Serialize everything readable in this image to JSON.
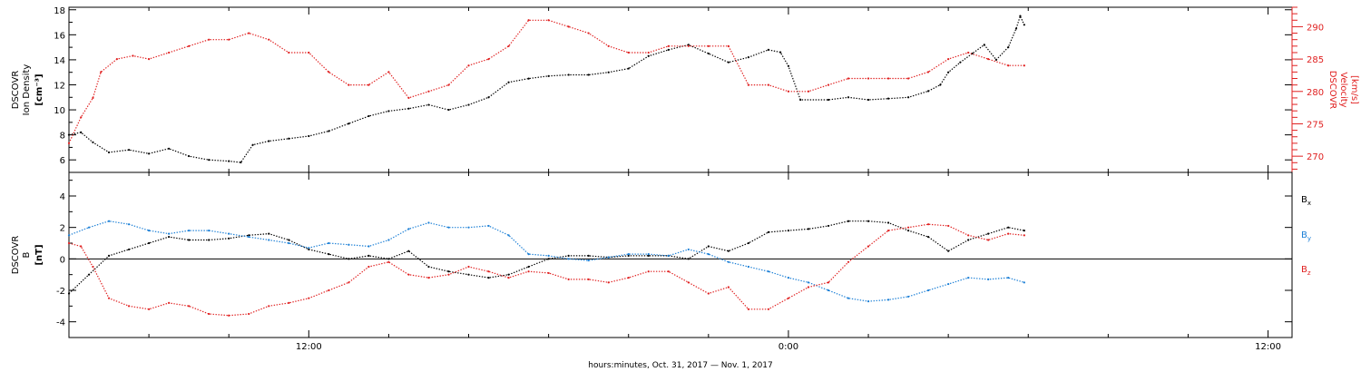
{
  "chart_data": [
    {
      "type": "scatter",
      "panel": "top",
      "left_axis": {
        "label_lines": [
          "DSCOVR",
          "Ion Density"
        ],
        "units": "[cm⁻³]",
        "ylim": [
          5,
          18.2
        ],
        "ticks": [
          6,
          8,
          10,
          12,
          14,
          16,
          18
        ],
        "color": "#000000"
      },
      "right_axis": {
        "label_lines": [
          "DSCOVR",
          "Velocity",
          "[km/s]"
        ],
        "ylim": [
          267.5,
          293
        ],
        "ticks": [
          270,
          275,
          280,
          285,
          290
        ],
        "color": "#e02020"
      },
      "series": [
        {
          "name": "",
          "axis": "left",
          "color": "#000000",
          "points": [
            [
              6.0,
              8.0
            ],
            [
              6.3,
              8.2
            ],
            [
              6.6,
              7.4
            ],
            [
              7.0,
              6.6
            ],
            [
              7.5,
              6.8
            ],
            [
              8.0,
              6.5
            ],
            [
              8.5,
              6.9
            ],
            [
              9.0,
              6.3
            ],
            [
              9.5,
              6.0
            ],
            [
              10.0,
              5.9
            ],
            [
              10.3,
              5.8
            ],
            [
              10.6,
              7.2
            ],
            [
              11.0,
              7.5
            ],
            [
              11.5,
              7.7
            ],
            [
              12.0,
              7.9
            ],
            [
              12.5,
              8.3
            ],
            [
              13.0,
              8.9
            ],
            [
              13.5,
              9.5
            ],
            [
              14.0,
              9.9
            ],
            [
              14.5,
              10.1
            ],
            [
              15.0,
              10.4
            ],
            [
              15.5,
              10.0
            ],
            [
              16.0,
              10.4
            ],
            [
              16.5,
              11.0
            ],
            [
              17.0,
              12.2
            ],
            [
              17.5,
              12.5
            ],
            [
              18.0,
              12.7
            ],
            [
              18.5,
              12.8
            ],
            [
              19.0,
              12.8
            ],
            [
              19.5,
              13.0
            ],
            [
              20.0,
              13.3
            ],
            [
              20.5,
              14.3
            ],
            [
              21.0,
              14.8
            ],
            [
              21.5,
              15.2
            ],
            [
              22.0,
              14.5
            ],
            [
              22.5,
              13.8
            ],
            [
              23.0,
              14.2
            ],
            [
              23.5,
              14.8
            ],
            [
              23.8,
              14.6
            ],
            [
              24.0,
              13.5
            ],
            [
              24.3,
              10.8
            ],
            [
              25.0,
              10.8
            ],
            [
              25.5,
              11.0
            ],
            [
              26.0,
              10.8
            ],
            [
              26.5,
              10.9
            ],
            [
              27.0,
              11.0
            ],
            [
              27.5,
              11.5
            ],
            [
              27.8,
              12.0
            ],
            [
              28.0,
              13.0
            ],
            [
              28.3,
              13.8
            ],
            [
              28.6,
              14.5
            ],
            [
              28.9,
              15.2
            ],
            [
              29.2,
              14.0
            ],
            [
              29.5,
              15.0
            ],
            [
              29.7,
              16.5
            ],
            [
              29.8,
              17.5
            ],
            [
              29.9,
              16.8
            ]
          ]
        },
        {
          "name": "",
          "axis": "right",
          "color": "#e02020",
          "points": [
            [
              6.0,
              272
            ],
            [
              6.3,
              276
            ],
            [
              6.6,
              279
            ],
            [
              6.8,
              283
            ],
            [
              7.2,
              285
            ],
            [
              7.6,
              285.5
            ],
            [
              8.0,
              285
            ],
            [
              8.5,
              286
            ],
            [
              9.0,
              287
            ],
            [
              9.5,
              288
            ],
            [
              10.0,
              288
            ],
            [
              10.5,
              289
            ],
            [
              11.0,
              288
            ],
            [
              11.5,
              286
            ],
            [
              12.0,
              286
            ],
            [
              12.5,
              283
            ],
            [
              13.0,
              281
            ],
            [
              13.5,
              281
            ],
            [
              14.0,
              283
            ],
            [
              14.5,
              279
            ],
            [
              15.0,
              280
            ],
            [
              15.5,
              281
            ],
            [
              16.0,
              284
            ],
            [
              16.5,
              285
            ],
            [
              17.0,
              287
            ],
            [
              17.5,
              291
            ],
            [
              18.0,
              291
            ],
            [
              18.5,
              290
            ],
            [
              19.0,
              289
            ],
            [
              19.5,
              287
            ],
            [
              20.0,
              286
            ],
            [
              20.5,
              286
            ],
            [
              21.0,
              287
            ],
            [
              21.5,
              287
            ],
            [
              22.0,
              287
            ],
            [
              22.5,
              287
            ],
            [
              23.0,
              281
            ],
            [
              23.5,
              281
            ],
            [
              24.0,
              280
            ],
            [
              24.5,
              280
            ],
            [
              25.0,
              281
            ],
            [
              25.5,
              282
            ],
            [
              26.0,
              282
            ],
            [
              26.5,
              282
            ],
            [
              27.0,
              282
            ],
            [
              27.5,
              283
            ],
            [
              28.0,
              285
            ],
            [
              28.5,
              286
            ],
            [
              29.0,
              285
            ],
            [
              29.5,
              284
            ],
            [
              29.9,
              284
            ]
          ]
        }
      ]
    },
    {
      "type": "scatter",
      "panel": "bottom",
      "left_axis": {
        "label_lines": [
          "DSCOVR",
          "B"
        ],
        "units": "[nT]",
        "ylim": [
          -5,
          5.5
        ],
        "ticks": [
          -4,
          -2,
          0,
          2,
          4
        ],
        "color": "#000000"
      },
      "zero_line": true,
      "legend": {
        "placement": "right"
      },
      "series": [
        {
          "name": "B",
          "sub": "x",
          "color": "#000000",
          "points": [
            [
              6.0,
              -2.2
            ],
            [
              6.5,
              -1.0
            ],
            [
              7.0,
              0.2
            ],
            [
              7.5,
              0.6
            ],
            [
              8.0,
              1.0
            ],
            [
              8.5,
              1.4
            ],
            [
              9.0,
              1.2
            ],
            [
              9.5,
              1.2
            ],
            [
              10.0,
              1.3
            ],
            [
              10.5,
              1.5
            ],
            [
              11.0,
              1.6
            ],
            [
              11.5,
              1.2
            ],
            [
              12.0,
              0.6
            ],
            [
              12.5,
              0.3
            ],
            [
              13.0,
              0.0
            ],
            [
              13.5,
              0.2
            ],
            [
              14.0,
              0.0
            ],
            [
              14.5,
              0.5
            ],
            [
              15.0,
              -0.5
            ],
            [
              15.5,
              -0.8
            ],
            [
              16.0,
              -1.0
            ],
            [
              16.5,
              -1.2
            ],
            [
              17.0,
              -1.0
            ],
            [
              17.5,
              -0.5
            ],
            [
              18.0,
              0.0
            ],
            [
              18.5,
              0.2
            ],
            [
              19.0,
              0.2
            ],
            [
              19.5,
              0.1
            ],
            [
              20.0,
              0.2
            ],
            [
              20.5,
              0.2
            ],
            [
              21.0,
              0.2
            ],
            [
              21.5,
              0.0
            ],
            [
              22.0,
              0.8
            ],
            [
              22.5,
              0.5
            ],
            [
              23.0,
              1.0
            ],
            [
              23.5,
              1.7
            ],
            [
              24.0,
              1.8
            ],
            [
              24.5,
              1.9
            ],
            [
              25.0,
              2.1
            ],
            [
              25.5,
              2.4
            ],
            [
              26.0,
              2.4
            ],
            [
              26.5,
              2.3
            ],
            [
              27.0,
              1.8
            ],
            [
              27.5,
              1.4
            ],
            [
              28.0,
              0.5
            ],
            [
              28.5,
              1.2
            ],
            [
              29.0,
              1.6
            ],
            [
              29.5,
              2.0
            ],
            [
              29.9,
              1.8
            ]
          ]
        },
        {
          "name": "B",
          "sub": "y",
          "color": "#1b7fd6",
          "points": [
            [
              6.0,
              1.5
            ],
            [
              6.5,
              2.0
            ],
            [
              7.0,
              2.4
            ],
            [
              7.5,
              2.2
            ],
            [
              8.0,
              1.8
            ],
            [
              8.5,
              1.6
            ],
            [
              9.0,
              1.8
            ],
            [
              9.5,
              1.8
            ],
            [
              10.0,
              1.6
            ],
            [
              10.5,
              1.4
            ],
            [
              11.0,
              1.2
            ],
            [
              11.5,
              1.0
            ],
            [
              12.0,
              0.7
            ],
            [
              12.5,
              1.0
            ],
            [
              13.0,
              0.9
            ],
            [
              13.5,
              0.8
            ],
            [
              14.0,
              1.2
            ],
            [
              14.5,
              1.9
            ],
            [
              15.0,
              2.3
            ],
            [
              15.5,
              2.0
            ],
            [
              16.0,
              2.0
            ],
            [
              16.5,
              2.1
            ],
            [
              17.0,
              1.5
            ],
            [
              17.5,
              0.3
            ],
            [
              18.0,
              0.2
            ],
            [
              18.5,
              0.0
            ],
            [
              19.0,
              -0.1
            ],
            [
              19.5,
              0.1
            ],
            [
              20.0,
              0.3
            ],
            [
              20.5,
              0.3
            ],
            [
              21.0,
              0.2
            ],
            [
              21.5,
              0.6
            ],
            [
              22.0,
              0.3
            ],
            [
              22.5,
              -0.2
            ],
            [
              23.0,
              -0.5
            ],
            [
              23.5,
              -0.8
            ],
            [
              24.0,
              -1.2
            ],
            [
              24.5,
              -1.5
            ],
            [
              25.0,
              -2.0
            ],
            [
              25.5,
              -2.5
            ],
            [
              26.0,
              -2.7
            ],
            [
              26.5,
              -2.6
            ],
            [
              27.0,
              -2.4
            ],
            [
              27.5,
              -2.0
            ],
            [
              28.0,
              -1.6
            ],
            [
              28.5,
              -1.2
            ],
            [
              29.0,
              -1.3
            ],
            [
              29.5,
              -1.2
            ],
            [
              29.9,
              -1.5
            ]
          ]
        },
        {
          "name": "B",
          "sub": "z",
          "color": "#e02020",
          "points": [
            [
              6.0,
              1.0
            ],
            [
              6.3,
              0.8
            ],
            [
              6.6,
              -0.5
            ],
            [
              7.0,
              -2.5
            ],
            [
              7.5,
              -3.0
            ],
            [
              8.0,
              -3.2
            ],
            [
              8.5,
              -2.8
            ],
            [
              9.0,
              -3.0
            ],
            [
              9.5,
              -3.5
            ],
            [
              10.0,
              -3.6
            ],
            [
              10.5,
              -3.5
            ],
            [
              11.0,
              -3.0
            ],
            [
              11.5,
              -2.8
            ],
            [
              12.0,
              -2.5
            ],
            [
              12.5,
              -2.0
            ],
            [
              13.0,
              -1.5
            ],
            [
              13.5,
              -0.5
            ],
            [
              14.0,
              -0.2
            ],
            [
              14.5,
              -1.0
            ],
            [
              15.0,
              -1.2
            ],
            [
              15.5,
              -1.0
            ],
            [
              16.0,
              -0.5
            ],
            [
              16.5,
              -0.8
            ],
            [
              17.0,
              -1.2
            ],
            [
              17.5,
              -0.8
            ],
            [
              18.0,
              -0.9
            ],
            [
              18.5,
              -1.3
            ],
            [
              19.0,
              -1.3
            ],
            [
              19.5,
              -1.5
            ],
            [
              20.0,
              -1.2
            ],
            [
              20.5,
              -0.8
            ],
            [
              21.0,
              -0.8
            ],
            [
              21.5,
              -1.5
            ],
            [
              22.0,
              -2.2
            ],
            [
              22.5,
              -1.8
            ],
            [
              23.0,
              -3.2
            ],
            [
              23.5,
              -3.2
            ],
            [
              24.0,
              -2.5
            ],
            [
              24.5,
              -1.8
            ],
            [
              25.0,
              -1.5
            ],
            [
              25.5,
              -0.2
            ],
            [
              26.0,
              0.8
            ],
            [
              26.5,
              1.8
            ],
            [
              27.0,
              2.0
            ],
            [
              27.5,
              2.2
            ],
            [
              28.0,
              2.1
            ],
            [
              28.5,
              1.5
            ],
            [
              29.0,
              1.2
            ],
            [
              29.5,
              1.6
            ],
            [
              29.9,
              1.5
            ]
          ]
        }
      ]
    }
  ],
  "x_axis": {
    "label": "hours:minutes, Oct. 31, 2017 — Nov.  1, 2017",
    "xlim": [
      6,
      36.6
    ],
    "major_ticks": [
      {
        "hour": 12,
        "label": "12:00"
      },
      {
        "hour": 24,
        "label": "0:00"
      },
      {
        "hour": 36,
        "label": "12:00"
      }
    ],
    "minor_step_hours": 2
  }
}
